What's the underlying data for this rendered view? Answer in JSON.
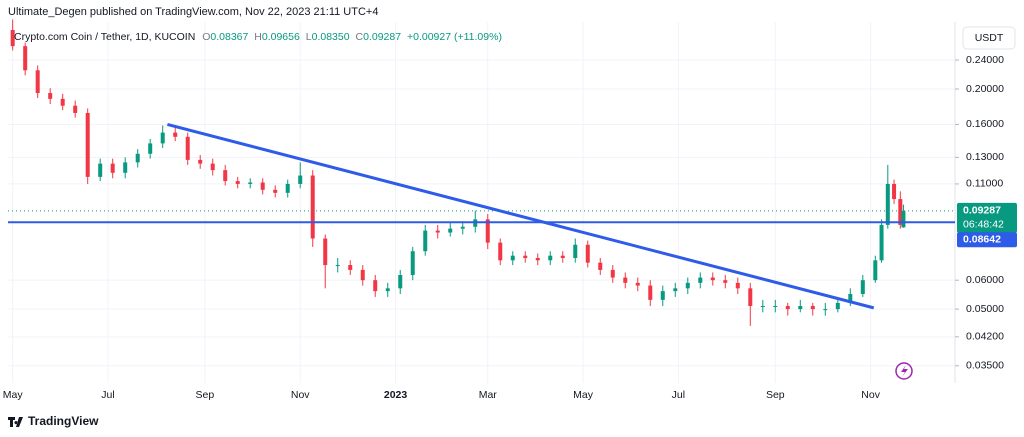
{
  "header": "Ultimate_Degen published on TradingView.com, Nov 22, 2023 21:11 UTC+4",
  "footer": "TradingView",
  "currency": "USDT",
  "chart_data": {
    "type": "candlestick",
    "title": "Crypto.com Coin / Tether, 1D, KUCOIN",
    "legend": {
      "open_label": "O",
      "open": "0.08367",
      "high_label": "H",
      "high": "0.09656",
      "low_label": "L",
      "low": "0.08350",
      "close_label": "C",
      "close": "0.09287",
      "change": "+0.00927 (+11.09%)"
    },
    "up_color": "#089981",
    "down_color": "#f23645",
    "log_scale": true,
    "grid": true,
    "xlim": [
      -3,
      603
    ],
    "xticks": [
      {
        "value": 0,
        "label": "May"
      },
      {
        "value": 61,
        "label": "Jul"
      },
      {
        "value": 123,
        "label": "Sep"
      },
      {
        "value": 184,
        "label": "Nov"
      },
      {
        "value": 245,
        "label": "2023"
      },
      {
        "value": 304,
        "label": "Mar"
      },
      {
        "value": 365,
        "label": "May"
      },
      {
        "value": 426,
        "label": "Jul"
      },
      {
        "value": 488,
        "label": "Sep"
      },
      {
        "value": 549,
        "label": "Nov"
      }
    ],
    "ylim": [
      0.0314,
      0.305
    ],
    "yticks": [
      {
        "value": 0.24,
        "label": "0.24000"
      },
      {
        "value": 0.2,
        "label": "0.20000"
      },
      {
        "value": 0.16,
        "label": "0.16000"
      },
      {
        "value": 0.13,
        "label": "0.13000"
      },
      {
        "value": 0.11,
        "label": "0.11000"
      },
      {
        "value": 0.06,
        "label": "0.06000"
      },
      {
        "value": 0.05,
        "label": "0.05000"
      },
      {
        "value": 0.042,
        "label": "0.04200"
      },
      {
        "value": 0.035,
        "label": "0.03500"
      }
    ],
    "x": [
      0,
      8,
      16,
      24,
      32,
      40,
      48,
      56,
      64,
      72,
      80,
      88,
      96,
      104,
      112,
      120,
      128,
      136,
      144,
      152,
      160,
      168,
      176,
      184,
      192,
      200,
      208,
      216,
      224,
      232,
      240,
      248,
      256,
      264,
      272,
      280,
      288,
      296,
      304,
      312,
      320,
      328,
      336,
      344,
      352,
      360,
      368,
      376,
      384,
      392,
      400,
      408,
      416,
      424,
      432,
      440,
      448,
      456,
      464,
      472,
      480,
      488,
      496,
      504,
      512,
      520,
      528,
      536,
      544,
      552,
      556,
      560,
      564,
      568,
      570
    ],
    "open": [
      0.29,
      0.262,
      0.225,
      0.195,
      0.188,
      0.18,
      0.172,
      0.115,
      0.125,
      0.118,
      0.126,
      0.133,
      0.142,
      0.152,
      0.148,
      0.128,
      0.125,
      0.12,
      0.112,
      0.11,
      0.111,
      0.106,
      0.104,
      0.11,
      0.116,
      0.078,
      0.066,
      0.066,
      0.064,
      0.06,
      0.056,
      0.057,
      0.062,
      0.072,
      0.082,
      0.081,
      0.083,
      0.084,
      0.088,
      0.076,
      0.068,
      0.07,
      0.069,
      0.068,
      0.07,
      0.069,
      0.075,
      0.067,
      0.064,
      0.061,
      0.059,
      0.058,
      0.053,
      0.056,
      0.057,
      0.059,
      0.061,
      0.06,
      0.059,
      0.057,
      0.051,
      0.051,
      0.051,
      0.05,
      0.051,
      0.05,
      0.05,
      0.052,
      0.055,
      0.06,
      0.068,
      0.085,
      0.11,
      0.1,
      0.08367
    ],
    "high": [
      0.31,
      0.268,
      0.232,
      0.201,
      0.194,
      0.186,
      0.177,
      0.129,
      0.129,
      0.13,
      0.137,
      0.146,
      0.159,
      0.157,
      0.152,
      0.132,
      0.129,
      0.124,
      0.115,
      0.114,
      0.114,
      0.109,
      0.113,
      0.126,
      0.12,
      0.08,
      0.069,
      0.068,
      0.066,
      0.062,
      0.059,
      0.064,
      0.074,
      0.085,
      0.085,
      0.086,
      0.087,
      0.093,
      0.091,
      0.078,
      0.072,
      0.072,
      0.071,
      0.072,
      0.072,
      0.078,
      0.077,
      0.069,
      0.066,
      0.063,
      0.061,
      0.06,
      0.058,
      0.059,
      0.061,
      0.063,
      0.063,
      0.062,
      0.061,
      0.059,
      0.053,
      0.053,
      0.052,
      0.053,
      0.052,
      0.052,
      0.054,
      0.057,
      0.062,
      0.07,
      0.088,
      0.124,
      0.113,
      0.105,
      0.09656
    ],
    "low": [
      0.255,
      0.218,
      0.189,
      0.182,
      0.175,
      0.167,
      0.11,
      0.112,
      0.114,
      0.114,
      0.122,
      0.129,
      0.138,
      0.144,
      0.124,
      0.121,
      0.116,
      0.109,
      0.107,
      0.107,
      0.103,
      0.101,
      0.101,
      0.107,
      0.074,
      0.057,
      0.063,
      0.062,
      0.058,
      0.054,
      0.054,
      0.055,
      0.06,
      0.07,
      0.078,
      0.079,
      0.08,
      0.081,
      0.073,
      0.066,
      0.066,
      0.067,
      0.066,
      0.066,
      0.067,
      0.067,
      0.065,
      0.062,
      0.059,
      0.057,
      0.056,
      0.051,
      0.051,
      0.054,
      0.055,
      0.057,
      0.058,
      0.057,
      0.055,
      0.045,
      0.049,
      0.049,
      0.048,
      0.049,
      0.048,
      0.048,
      0.049,
      0.051,
      0.054,
      0.059,
      0.067,
      0.083,
      0.097,
      0.083,
      0.0835
    ],
    "close": [
      0.262,
      0.225,
      0.195,
      0.188,
      0.18,
      0.172,
      0.115,
      0.125,
      0.118,
      0.126,
      0.133,
      0.142,
      0.152,
      0.148,
      0.128,
      0.125,
      0.12,
      0.112,
      0.11,
      0.111,
      0.106,
      0.104,
      0.11,
      0.116,
      0.078,
      0.066,
      0.066,
      0.064,
      0.06,
      0.056,
      0.057,
      0.062,
      0.072,
      0.082,
      0.081,
      0.083,
      0.084,
      0.088,
      0.076,
      0.068,
      0.07,
      0.069,
      0.068,
      0.07,
      0.069,
      0.075,
      0.067,
      0.064,
      0.061,
      0.059,
      0.058,
      0.053,
      0.056,
      0.057,
      0.059,
      0.061,
      0.06,
      0.059,
      0.057,
      0.051,
      0.051,
      0.051,
      0.05,
      0.051,
      0.05,
      0.05,
      0.052,
      0.055,
      0.06,
      0.068,
      0.085,
      0.11,
      0.1,
      0.085,
      0.09287
    ],
    "trendline": {
      "x": [
        99,
        551
      ],
      "y": [
        0.16,
        0.0504
      ],
      "color": "#2e5be8"
    },
    "hline": {
      "value": 0.08642,
      "color": "#2e5be8"
    },
    "last_price": 0.09287,
    "countdown": "06:48:42"
  }
}
